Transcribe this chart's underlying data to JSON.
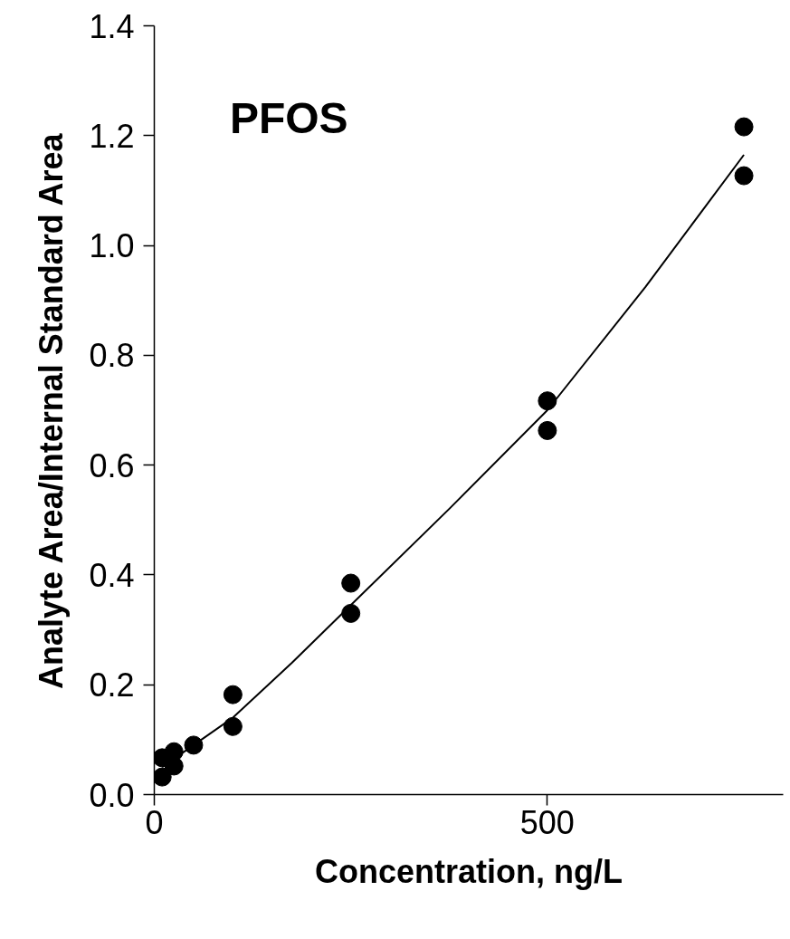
{
  "chart_data": {
    "type": "scatter",
    "xlabel": "Concentration, ng/L",
    "ylabel": "Analyte Area/Internal Standard Area",
    "annotations": [
      "PFOS"
    ],
    "xlim": [
      0,
      800
    ],
    "xticks": [
      0,
      500
    ],
    "ylim": [
      0,
      1.4
    ],
    "yticks": [
      {
        "value": 0,
        "label": "0.0"
      },
      {
        "value": 0.2,
        "label": "0.2"
      },
      {
        "value": 0.4,
        "label": "0.4"
      },
      {
        "value": 0.6,
        "label": "0.6"
      },
      {
        "value": 0.8,
        "label": "0.8"
      },
      {
        "value": 1.0,
        "label": "1.0"
      },
      {
        "value": 1.2,
        "label": "1.2"
      },
      {
        "value": 1.4,
        "label": "1.4"
      }
    ],
    "grid": false,
    "series": [
      {
        "marker": "circle",
        "color": "#000000",
        "x": [
          10,
          10,
          25,
          25,
          50,
          100,
          100,
          250,
          250,
          500,
          500,
          750,
          750
        ],
        "values": [
          0.067,
          0.032,
          0.078,
          0.052,
          0.09,
          0.182,
          0.124,
          0.385,
          0.33,
          0.717,
          0.663,
          1.216,
          1.127
        ]
      },
      {
        "type": "line",
        "color": "#000000",
        "line_style": "solid",
        "x": [
          10,
          50,
          100,
          175,
          250,
          375,
          500,
          625,
          750
        ],
        "values": [
          0.05,
          0.09,
          0.14,
          0.24,
          0.345,
          0.52,
          0.7,
          0.925,
          1.165
        ]
      }
    ]
  }
}
